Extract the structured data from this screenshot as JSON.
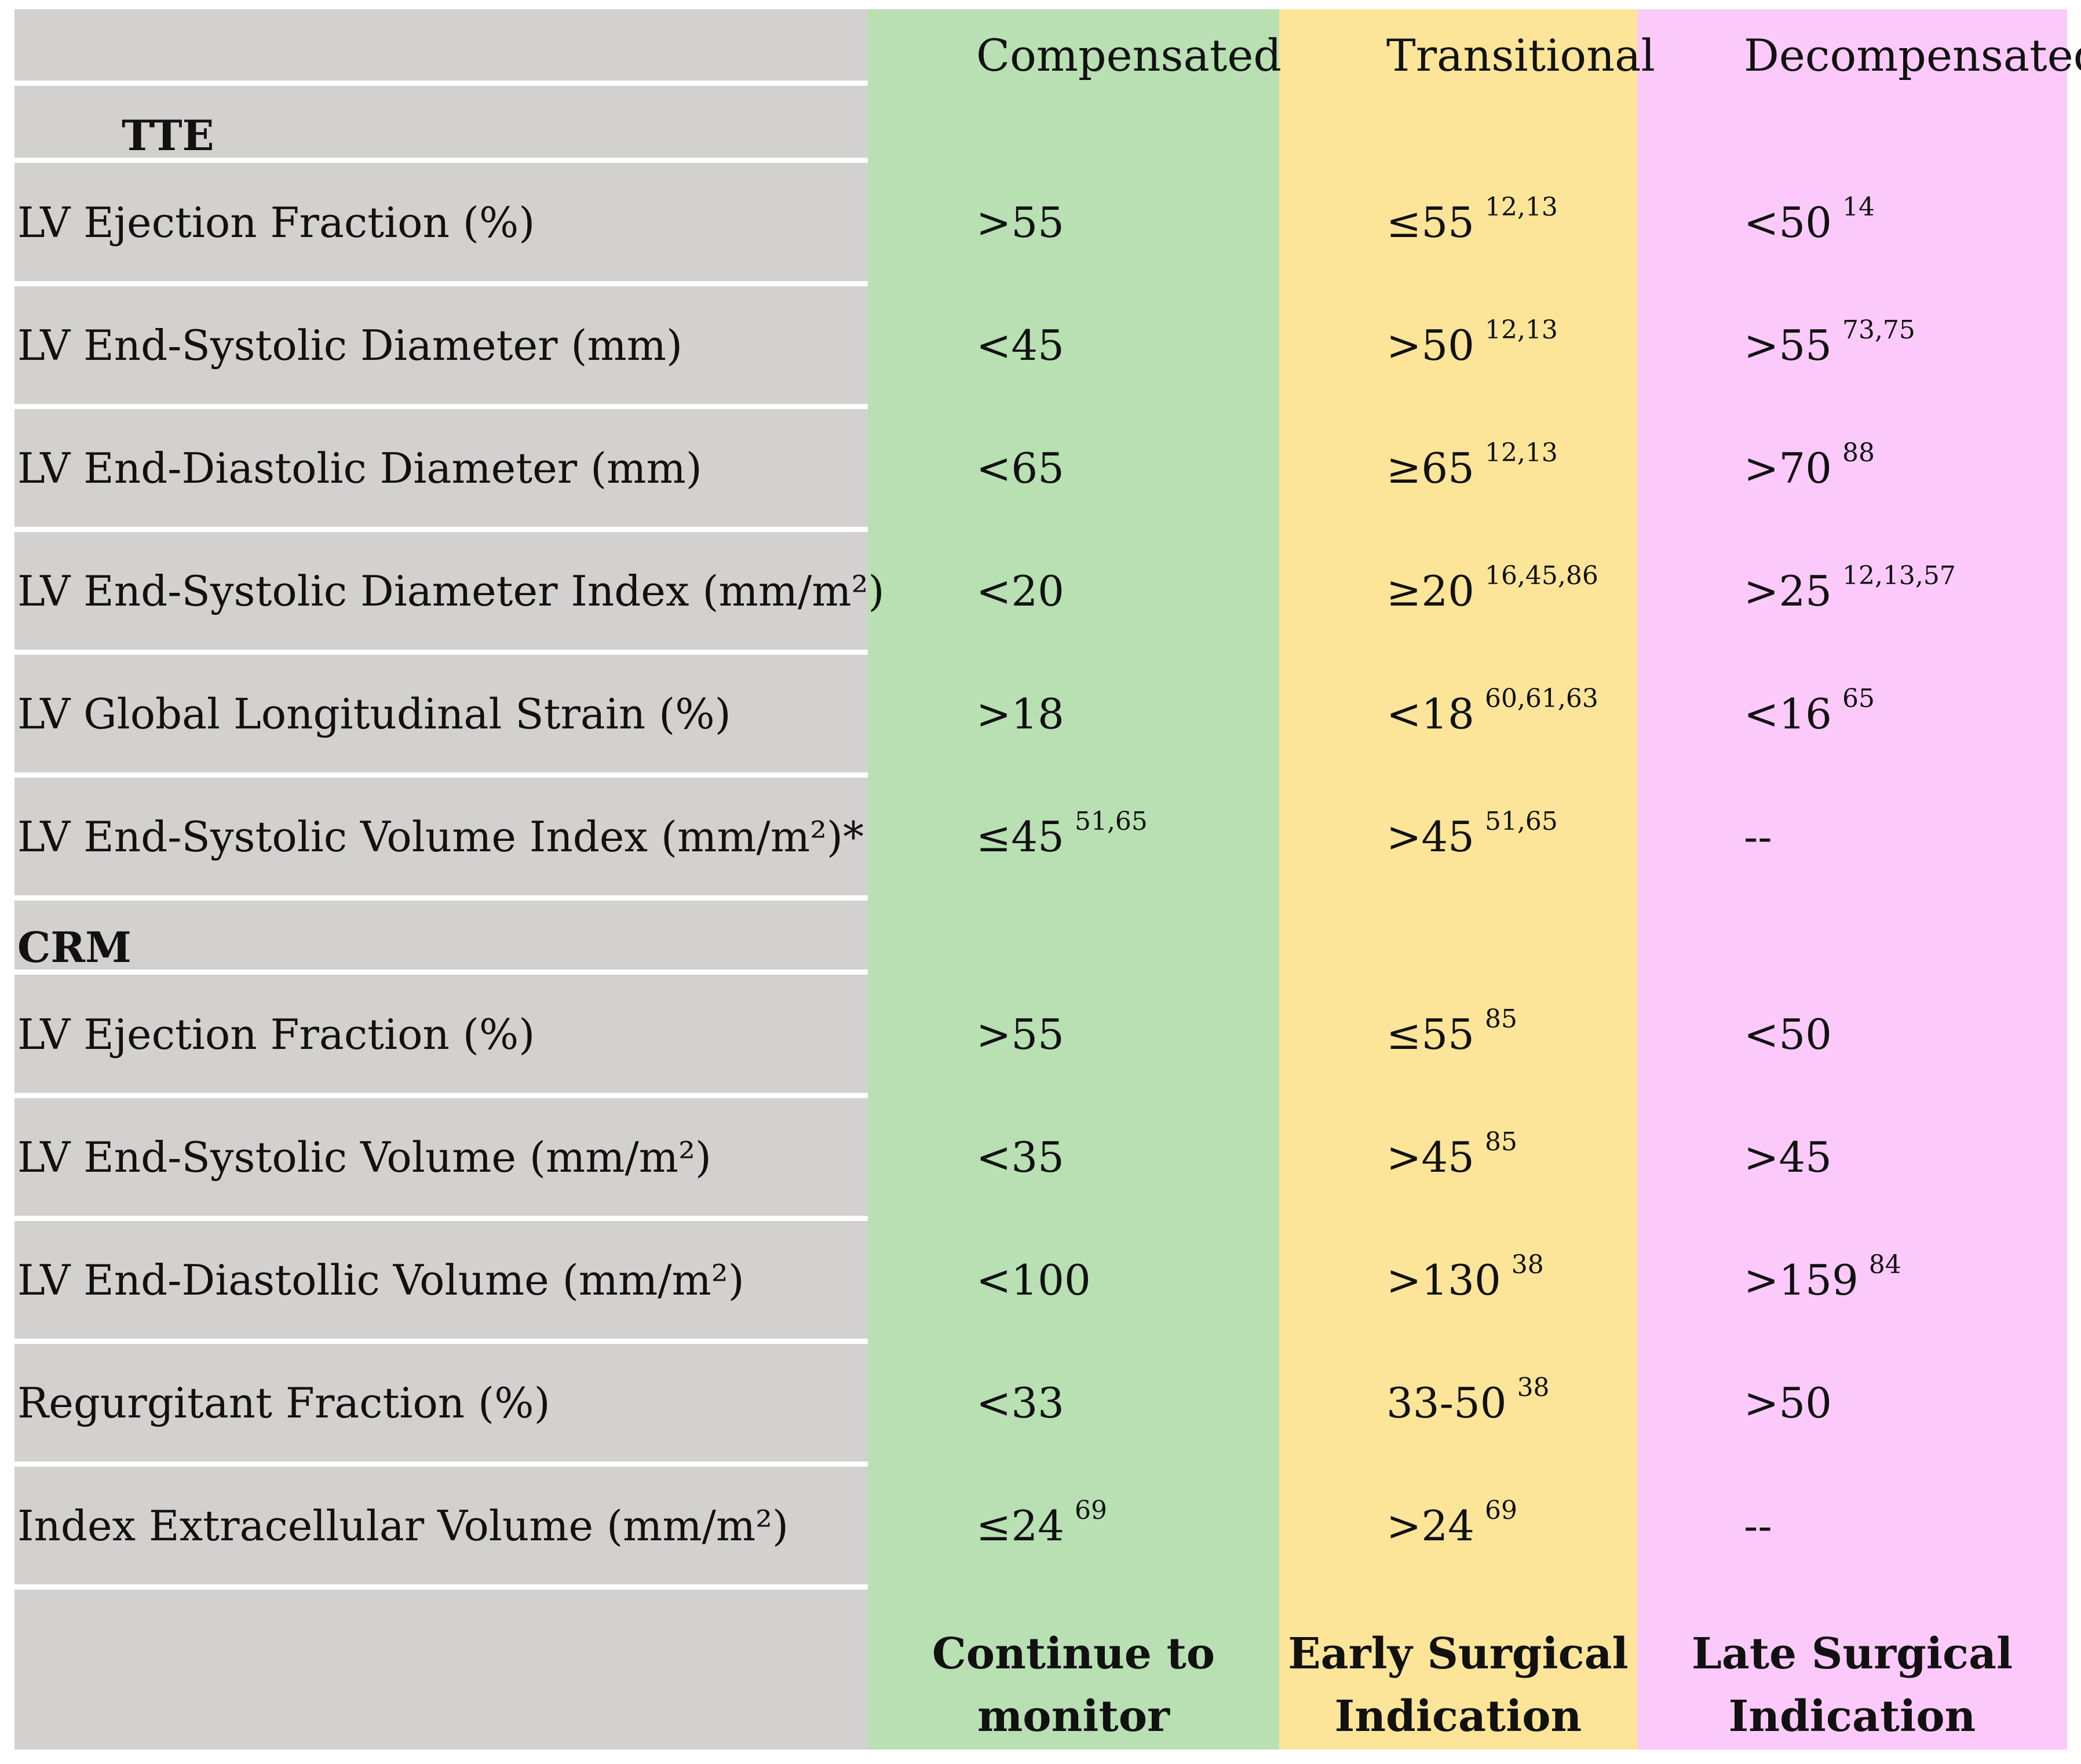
{
  "header": {
    "columns": [
      "Compensated",
      "Transitional",
      "Decompensated"
    ]
  },
  "sections": [
    {
      "title": "TTE",
      "rows": [
        {
          "label": "LV Ejection Fraction (%)",
          "values": [
            {
              "v": ">55",
              "ref": ""
            },
            {
              "v": "≤55",
              "ref": "12,13"
            },
            {
              "v": "<50",
              "ref": "14"
            }
          ]
        },
        {
          "label": "LV End-Systolic Diameter (mm)",
          "values": [
            {
              "v": "<45",
              "ref": ""
            },
            {
              "v": ">50",
              "ref": "12,13"
            },
            {
              "v": ">55",
              "ref": "73,75"
            }
          ]
        },
        {
          "label": "LV End-Diastolic Diameter (mm)",
          "values": [
            {
              "v": "<65",
              "ref": ""
            },
            {
              "v": "≥65",
              "ref": "12,13"
            },
            {
              "v": ">70",
              "ref": "88"
            }
          ]
        },
        {
          "label": "LV End-Systolic Diameter Index (mm/m²)",
          "values": [
            {
              "v": "<20",
              "ref": ""
            },
            {
              "v": "≥20",
              "ref": "16,45,86"
            },
            {
              "v": ">25",
              "ref": "12,13,57"
            }
          ]
        },
        {
          "label": "LV Global Longitudinal Strain (%)",
          "values": [
            {
              "v": ">18",
              "ref": ""
            },
            {
              "v": "<18",
              "ref": "60,61,63"
            },
            {
              "v": "<16",
              "ref": "65"
            }
          ]
        },
        {
          "label": "LV End-Systolic Volume Index (mm/m²)*",
          "values": [
            {
              "v": "≤45",
              "ref": "51,65"
            },
            {
              "v": ">45",
              "ref": "51,65"
            },
            {
              "v": "--",
              "ref": ""
            }
          ]
        }
      ]
    },
    {
      "title": "CRM",
      "rows": [
        {
          "label": "LV Ejection Fraction (%)",
          "values": [
            {
              "v": ">55",
              "ref": ""
            },
            {
              "v": "≤55",
              "ref": "85"
            },
            {
              "v": "<50",
              "ref": ""
            }
          ]
        },
        {
          "label": "LV End-Systolic Volume    (mm/m²)",
          "values": [
            {
              "v": "<35",
              "ref": ""
            },
            {
              "v": ">45",
              "ref": "85"
            },
            {
              "v": ">45",
              "ref": ""
            }
          ]
        },
        {
          "label": "LV End-Diastollic Volume (mm/m²)",
          "values": [
            {
              "v": "<100",
              "ref": ""
            },
            {
              "v": ">130",
              "ref": "38"
            },
            {
              "v": ">159",
              "ref": "84"
            }
          ]
        },
        {
          "label": "Regurgitant Fraction (%)",
          "values": [
            {
              "v": "<33",
              "ref": ""
            },
            {
              "v": "33-50",
              "ref": "38"
            },
            {
              "v": ">50",
              "ref": ""
            }
          ]
        },
        {
          "label": "Index Extracellular Volume (mm/m²)",
          "values": [
            {
              "v": "≤24",
              "ref": "69"
            },
            {
              "v": ">24",
              "ref": "69"
            },
            {
              "v": "--",
              "ref": ""
            }
          ]
        }
      ]
    }
  ],
  "footer": {
    "recommendations": [
      "Continue to monitor",
      "Early Surgical Indication",
      "Late Surgical Indication"
    ]
  }
}
